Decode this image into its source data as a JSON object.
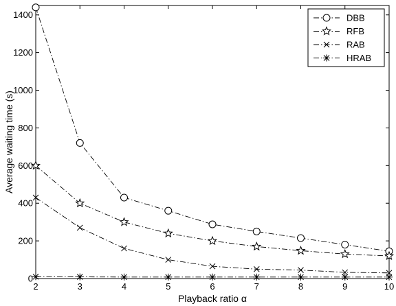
{
  "chart_data": {
    "type": "line",
    "title": "",
    "xlabel": "Playback ratio α",
    "ylabel": "Average waiting time (s)",
    "xlim": [
      2,
      10
    ],
    "ylim": [
      0,
      1450
    ],
    "xticks": [
      2,
      3,
      4,
      5,
      6,
      7,
      8,
      9,
      10
    ],
    "yticks": [
      0,
      200,
      400,
      600,
      800,
      1000,
      1200,
      1400
    ],
    "grid": false,
    "legend_position": "top-right",
    "x": [
      2,
      3,
      4,
      5,
      6,
      7,
      8,
      9,
      10
    ],
    "series": [
      {
        "name": "DBB",
        "marker": "circle",
        "values": [
          1440,
          720,
          430,
          360,
          288,
          250,
          215,
          180,
          145
        ]
      },
      {
        "name": "RFB",
        "marker": "star",
        "values": [
          600,
          400,
          300,
          240,
          200,
          170,
          148,
          130,
          120
        ]
      },
      {
        "name": "RAB",
        "marker": "x",
        "values": [
          430,
          270,
          160,
          100,
          65,
          50,
          45,
          33,
          30
        ]
      },
      {
        "name": "HRAB",
        "marker": "asterisk",
        "values": [
          10,
          9,
          8,
          8,
          8,
          8,
          8,
          8,
          8
        ]
      }
    ],
    "line_style": "dash-dot",
    "line_color": "#000000"
  }
}
